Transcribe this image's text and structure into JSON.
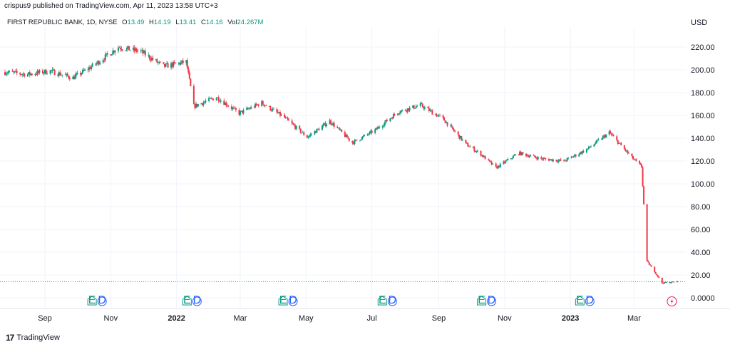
{
  "header": {
    "text": "crispus9 published on TradingView.com, Apr 11, 2023 13:58 UTC+3"
  },
  "legend": {
    "symbol": "FIRST REPUBLIC BANK, 1D, NYSE",
    "open_label": "O",
    "open": "13.49",
    "high_label": "H",
    "high": "14.19",
    "low_label": "L",
    "low": "13.41",
    "close_label": "C",
    "close": "14.16",
    "vol_label": "Vol",
    "vol": "24.267M"
  },
  "currency": "USD",
  "footer": {
    "brand": "TradingView",
    "logo": "17"
  },
  "colors": {
    "up": "#089981",
    "down": "#f23645",
    "grid": "#e0e3eb",
    "dividend": "#089981",
    "earnings": "#2962ff",
    "split": "#e91e63"
  },
  "icons": {
    "dividend": "dividend-icon",
    "earnings": "earnings-icon",
    "flash": "flash-icon",
    "brand": "tradingview-logo-icon"
  },
  "chart_data": {
    "type": "candlestick",
    "ylim": [
      0,
      230
    ],
    "y_ticks": [
      "0.0000",
      "20.00",
      "40.00",
      "60.00",
      "80.00",
      "100.00",
      "120.00",
      "140.00",
      "160.00",
      "180.00",
      "200.00",
      "220.00"
    ],
    "y_tick_values": [
      0,
      20,
      40,
      60,
      80,
      100,
      120,
      140,
      160,
      180,
      200,
      220
    ],
    "x_ticks": [
      "Sep",
      "Nov",
      "2022",
      "Mar",
      "May",
      "Jul",
      "Sep",
      "Nov",
      "2023",
      "Mar"
    ],
    "x_tick_bold": [
      false,
      false,
      true,
      false,
      false,
      false,
      false,
      false,
      true,
      false
    ],
    "last_price": 14.16,
    "events": [
      {
        "type": "E",
        "at": "Oct 2021"
      },
      {
        "type": "D",
        "at": "Oct 2021"
      },
      {
        "type": "E",
        "at": "Jan 2022"
      },
      {
        "type": "D",
        "at": "Jan 2022"
      },
      {
        "type": "E",
        "at": "Apr 2022"
      },
      {
        "type": "D",
        "at": "Apr 2022"
      },
      {
        "type": "E",
        "at": "Jul 2022"
      },
      {
        "type": "D",
        "at": "Jul 2022"
      },
      {
        "type": "E",
        "at": "Oct 2022"
      },
      {
        "type": "D",
        "at": "Oct 2022"
      },
      {
        "type": "E",
        "at": "Jan 2023"
      },
      {
        "type": "D",
        "at": "Jan 2023"
      },
      {
        "type": "split",
        "at": "Apr 2023"
      }
    ],
    "anchors": [
      [
        "Jul 26, 2021",
        198
      ],
      [
        "Aug 16, 2021",
        196
      ],
      [
        "Sep 06, 2021",
        199
      ],
      [
        "Sep 27, 2021",
        193
      ],
      [
        "Oct 18, 2021",
        205
      ],
      [
        "Nov 08, 2021",
        220
      ],
      [
        "Nov 29, 2021",
        216
      ],
      [
        "Dec 20, 2021",
        203
      ],
      [
        "Jan 10, 2022",
        207
      ],
      [
        "Jan 17, 2022",
        168
      ],
      [
        "Feb 07, 2022",
        176
      ],
      [
        "Feb 28, 2022",
        162
      ],
      [
        "Mar 21, 2022",
        171
      ],
      [
        "Apr 11, 2022",
        158
      ],
      [
        "May 02, 2022",
        141
      ],
      [
        "May 23, 2022",
        155
      ],
      [
        "Jun 13, 2022",
        136
      ],
      [
        "Jul 04, 2022",
        147
      ],
      [
        "Jul 25, 2022",
        163
      ],
      [
        "Aug 15, 2022",
        169
      ],
      [
        "Sep 05, 2022",
        157
      ],
      [
        "Sep 26, 2022",
        135
      ],
      [
        "Oct 10, 2022",
        126
      ],
      [
        "Oct 24, 2022",
        114
      ],
      [
        "Nov 14, 2022",
        127
      ],
      [
        "Dec 05, 2022",
        122
      ],
      [
        "Dec 26, 2022",
        120
      ],
      [
        "Jan 16, 2023",
        130
      ],
      [
        "Feb 06, 2023",
        145
      ],
      [
        "Feb 27, 2023",
        123
      ],
      [
        "Mar 08, 2023",
        115
      ],
      [
        "Mar 10, 2023",
        82
      ],
      [
        "Mar 13, 2023",
        32
      ],
      [
        "Mar 20, 2023",
        23
      ],
      [
        "Mar 27, 2023",
        13
      ],
      [
        "Apr 10, 2023",
        14.16
      ]
    ]
  }
}
